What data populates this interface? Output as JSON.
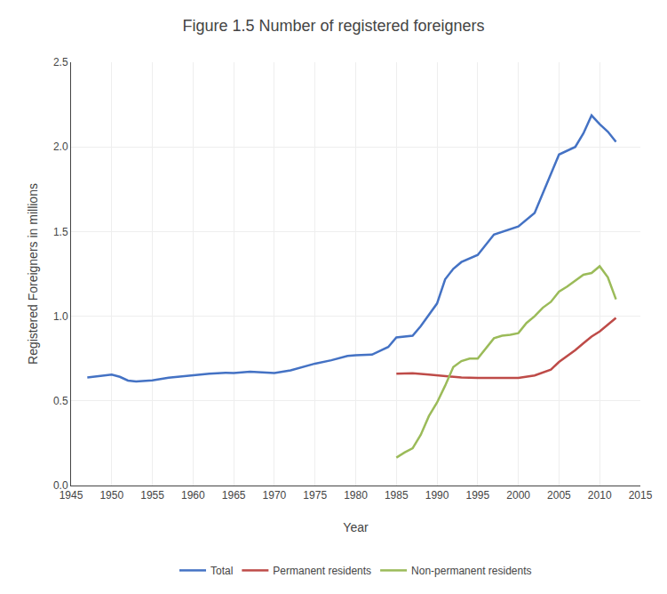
{
  "chart_data": {
    "type": "line",
    "title": "Figure 1.5 Number of registered foreigners",
    "xlabel": "Year",
    "ylabel": "Registered Foreigners in millions",
    "xlim": [
      1945,
      2015
    ],
    "ylim": [
      0.0,
      2.5
    ],
    "xticks": [
      1945,
      1950,
      1955,
      1960,
      1965,
      1970,
      1975,
      1980,
      1985,
      1990,
      1995,
      2000,
      2005,
      2010,
      2015
    ],
    "yticks": [
      {
        "value": 0.0,
        "label": "0.0"
      },
      0.5,
      {
        "value": 1.0,
        "label": "1.0"
      },
      1.5,
      {
        "value": 2.0,
        "label": "2.0"
      },
      2.5
    ],
    "grid": true,
    "legend": "bottom",
    "series": [
      {
        "name": "Total",
        "color": "#4472C4",
        "x": [
          1947,
          1950,
          1951,
          1952,
          1953,
          1955,
          1957,
          1959,
          1960,
          1962,
          1964,
          1965,
          1967,
          1969,
          1970,
          1972,
          1975,
          1977,
          1979,
          1980,
          1982,
          1984,
          1985,
          1987,
          1988,
          1990,
          1991,
          1992,
          1993,
          1995,
          1997,
          2000,
          2002,
          2005,
          2007,
          2008,
          2009,
          2010,
          2011,
          2012
        ],
        "values": [
          0.638,
          0.655,
          0.642,
          0.62,
          0.615,
          0.621,
          0.637,
          0.647,
          0.65,
          0.66,
          0.666,
          0.665,
          0.672,
          0.668,
          0.665,
          0.68,
          0.72,
          0.74,
          0.765,
          0.77,
          0.773,
          0.818,
          0.875,
          0.885,
          0.941,
          1.075,
          1.218,
          1.28,
          1.32,
          1.362,
          1.482,
          1.53,
          1.61,
          1.955,
          2.0,
          2.08,
          2.186,
          2.134,
          2.09,
          2.03
        ]
      },
      {
        "name": "Permanent residents",
        "color": "#BE4B48",
        "x": [
          1985,
          1986,
          1987,
          1989,
          1990,
          1991,
          1992,
          1993,
          1995,
          1997,
          1999,
          2000,
          2002,
          2004,
          2005,
          2007,
          2008,
          2009,
          2010,
          2011,
          2012
        ],
        "values": [
          0.66,
          0.663,
          0.663,
          0.655,
          0.651,
          0.648,
          0.645,
          0.638,
          0.635,
          0.634,
          0.633,
          0.635,
          0.65,
          0.685,
          0.73,
          0.8,
          0.84,
          0.88,
          0.91,
          0.95,
          0.99
        ]
      },
      {
        "name": "Non-permanent residents",
        "color": "#9BBB59",
        "x": [
          1985,
          1986,
          1987,
          1988,
          1989,
          1990,
          1991,
          1992,
          1993,
          1994,
          1995,
          1996,
          1997,
          1998,
          1999,
          2000,
          2001,
          2002,
          2003,
          2004,
          2005,
          2006,
          2007,
          2008,
          2009,
          2010,
          2011,
          2012
        ],
        "values": [
          0.165,
          0.195,
          0.22,
          0.3,
          0.41,
          0.49,
          0.59,
          0.7,
          0.735,
          0.75,
          0.75,
          0.81,
          0.87,
          0.885,
          0.89,
          0.9,
          0.96,
          1.0,
          1.05,
          1.085,
          1.145,
          1.175,
          1.21,
          1.245,
          1.255,
          1.295,
          1.23,
          1.1
        ]
      }
    ]
  }
}
